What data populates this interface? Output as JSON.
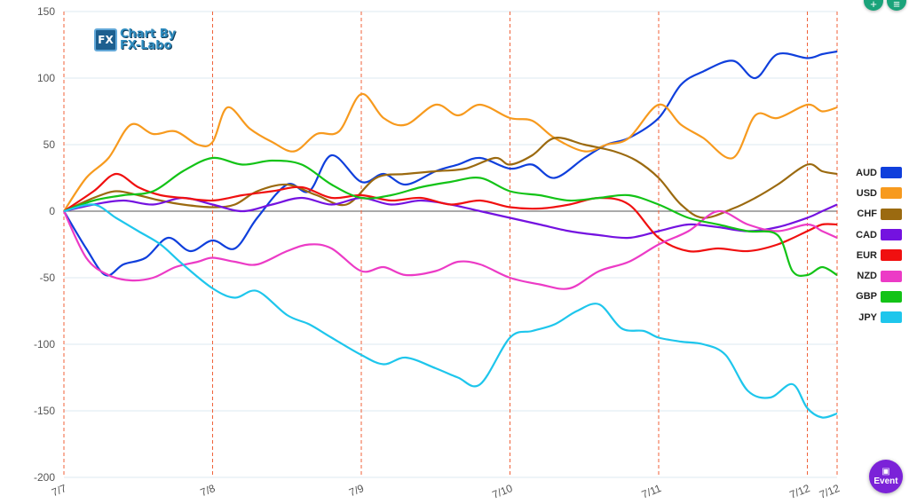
{
  "logo": {
    "line1": "Chart By",
    "line2": "FX-Labo",
    "mark": "FX"
  },
  "event_button": {
    "label": "Event",
    "icon": "calendar-icon"
  },
  "top_buttons": [
    {
      "icon": "plus-icon"
    },
    {
      "icon": "menu-icon"
    }
  ],
  "chart_data": {
    "type": "line",
    "title": "",
    "xlabel": "",
    "ylabel": "",
    "ylim": [
      -200,
      150
    ],
    "yticks": [
      150,
      100,
      50,
      0,
      -50,
      -100,
      -150,
      -200
    ],
    "x_ticks": [
      "7/7",
      "7/8",
      "7/9",
      "7/10",
      "7/11",
      "7/12",
      "7/12"
    ],
    "x_range": [
      0,
      5.2
    ],
    "x_tick_positions": [
      0,
      1,
      2,
      3,
      4,
      5,
      5.2
    ],
    "grid": true,
    "legend": "right",
    "series": [
      {
        "name": "AUD",
        "color": "#0f3fdc",
        "x": [
          0,
          0.15,
          0.28,
          0.4,
          0.55,
          0.7,
          0.85,
          1.0,
          1.15,
          1.3,
          1.5,
          1.65,
          1.8,
          2.0,
          2.15,
          2.3,
          2.5,
          2.65,
          2.8,
          3.0,
          3.15,
          3.3,
          3.5,
          3.65,
          3.8,
          4.0,
          4.15,
          4.3,
          4.5,
          4.65,
          4.8,
          5.0,
          5.1,
          5.2
        ],
        "y": [
          0,
          -28,
          -48,
          -40,
          -35,
          -20,
          -30,
          -22,
          -28,
          -5,
          20,
          15,
          42,
          22,
          28,
          20,
          30,
          35,
          40,
          32,
          35,
          25,
          40,
          50,
          55,
          70,
          95,
          105,
          113,
          100,
          118,
          115,
          118,
          120
        ]
      },
      {
        "name": "USD",
        "color": "#f79a1e",
        "x": [
          0,
          0.15,
          0.3,
          0.45,
          0.6,
          0.75,
          0.9,
          1.0,
          1.1,
          1.25,
          1.4,
          1.55,
          1.7,
          1.85,
          2.0,
          2.15,
          2.3,
          2.5,
          2.65,
          2.8,
          3.0,
          3.15,
          3.3,
          3.5,
          3.65,
          3.8,
          4.0,
          4.15,
          4.3,
          4.5,
          4.65,
          4.8,
          5.0,
          5.1,
          5.2
        ],
        "y": [
          0,
          25,
          40,
          65,
          58,
          60,
          50,
          52,
          78,
          62,
          52,
          45,
          58,
          60,
          88,
          70,
          65,
          80,
          72,
          80,
          70,
          68,
          55,
          45,
          50,
          55,
          80,
          65,
          55,
          40,
          72,
          70,
          80,
          75,
          78
        ]
      },
      {
        "name": "CHF",
        "color": "#9b6a10",
        "x": [
          0,
          0.2,
          0.35,
          0.5,
          0.65,
          0.8,
          1.0,
          1.15,
          1.3,
          1.5,
          1.7,
          1.9,
          2.1,
          2.3,
          2.5,
          2.7,
          2.9,
          3.0,
          3.15,
          3.3,
          3.5,
          3.7,
          3.85,
          4.0,
          4.15,
          4.3,
          4.5,
          4.65,
          4.8,
          5.0,
          5.1,
          5.2
        ],
        "y": [
          0,
          10,
          15,
          12,
          8,
          5,
          3,
          5,
          15,
          20,
          12,
          5,
          25,
          28,
          30,
          32,
          40,
          35,
          42,
          55,
          50,
          45,
          38,
          25,
          5,
          -5,
          2,
          10,
          20,
          35,
          30,
          28
        ]
      },
      {
        "name": "CAD",
        "color": "#7412e0",
        "x": [
          0,
          0.2,
          0.4,
          0.6,
          0.8,
          1.0,
          1.2,
          1.4,
          1.6,
          1.8,
          2.0,
          2.2,
          2.4,
          2.6,
          2.8,
          3.0,
          3.2,
          3.4,
          3.6,
          3.8,
          4.0,
          4.2,
          4.4,
          4.6,
          4.8,
          5.0,
          5.1,
          5.2
        ],
        "y": [
          0,
          5,
          8,
          5,
          10,
          5,
          0,
          5,
          10,
          5,
          10,
          5,
          8,
          5,
          0,
          -5,
          -10,
          -15,
          -18,
          -20,
          -15,
          -10,
          -12,
          -15,
          -12,
          -5,
          0,
          5
        ]
      },
      {
        "name": "EUR",
        "color": "#f01010",
        "x": [
          0,
          0.2,
          0.35,
          0.5,
          0.65,
          0.8,
          1.0,
          1.2,
          1.4,
          1.6,
          1.8,
          2.0,
          2.2,
          2.4,
          2.6,
          2.8,
          3.0,
          3.2,
          3.4,
          3.6,
          3.8,
          4.0,
          4.2,
          4.4,
          4.6,
          4.8,
          5.0,
          5.1,
          5.2
        ],
        "y": [
          0,
          15,
          28,
          18,
          12,
          10,
          8,
          12,
          15,
          18,
          10,
          12,
          8,
          10,
          5,
          8,
          3,
          2,
          5,
          10,
          5,
          -20,
          -30,
          -28,
          -30,
          -25,
          -15,
          -10,
          -10
        ]
      },
      {
        "name": "NZD",
        "color": "#ec3bc6",
        "x": [
          0,
          0.15,
          0.3,
          0.45,
          0.6,
          0.75,
          0.9,
          1.0,
          1.15,
          1.3,
          1.5,
          1.65,
          1.8,
          2.0,
          2.15,
          2.3,
          2.5,
          2.65,
          2.8,
          3.0,
          3.2,
          3.4,
          3.6,
          3.8,
          4.0,
          4.2,
          4.4,
          4.6,
          4.8,
          5.0,
          5.1,
          5.2
        ],
        "y": [
          0,
          -35,
          -48,
          -52,
          -50,
          -42,
          -38,
          -35,
          -38,
          -40,
          -30,
          -25,
          -28,
          -45,
          -42,
          -48,
          -45,
          -38,
          -40,
          -50,
          -55,
          -58,
          -45,
          -38,
          -25,
          -15,
          0,
          -10,
          -15,
          -10,
          -15,
          -20
        ]
      },
      {
        "name": "GBP",
        "color": "#13c317",
        "x": [
          0,
          0.2,
          0.4,
          0.6,
          0.8,
          1.0,
          1.2,
          1.4,
          1.6,
          1.8,
          2.0,
          2.2,
          2.4,
          2.6,
          2.8,
          3.0,
          3.2,
          3.4,
          3.6,
          3.8,
          4.0,
          4.2,
          4.4,
          4.6,
          4.8,
          4.9,
          5.0,
          5.1,
          5.2
        ],
        "y": [
          0,
          8,
          12,
          15,
          30,
          40,
          35,
          38,
          35,
          20,
          10,
          12,
          18,
          22,
          25,
          15,
          12,
          8,
          10,
          12,
          5,
          -5,
          -10,
          -15,
          -18,
          -45,
          -48,
          -42,
          -48
        ]
      },
      {
        "name": "JPY",
        "color": "#1ec6ec",
        "x": [
          0,
          0.2,
          0.35,
          0.5,
          0.65,
          0.8,
          1.0,
          1.15,
          1.3,
          1.5,
          1.65,
          1.8,
          2.0,
          2.15,
          2.3,
          2.5,
          2.65,
          2.8,
          3.0,
          3.15,
          3.3,
          3.45,
          3.6,
          3.75,
          3.9,
          4.0,
          4.15,
          4.3,
          4.45,
          4.6,
          4.75,
          4.9,
          5.0,
          5.1,
          5.2
        ],
        "y": [
          0,
          5,
          -5,
          -15,
          -25,
          -40,
          -58,
          -65,
          -60,
          -78,
          -85,
          -95,
          -108,
          -115,
          -110,
          -118,
          -125,
          -130,
          -95,
          -90,
          -85,
          -75,
          -70,
          -88,
          -90,
          -95,
          -98,
          -100,
          -108,
          -135,
          -140,
          -130,
          -148,
          -155,
          -152
        ]
      }
    ]
  }
}
